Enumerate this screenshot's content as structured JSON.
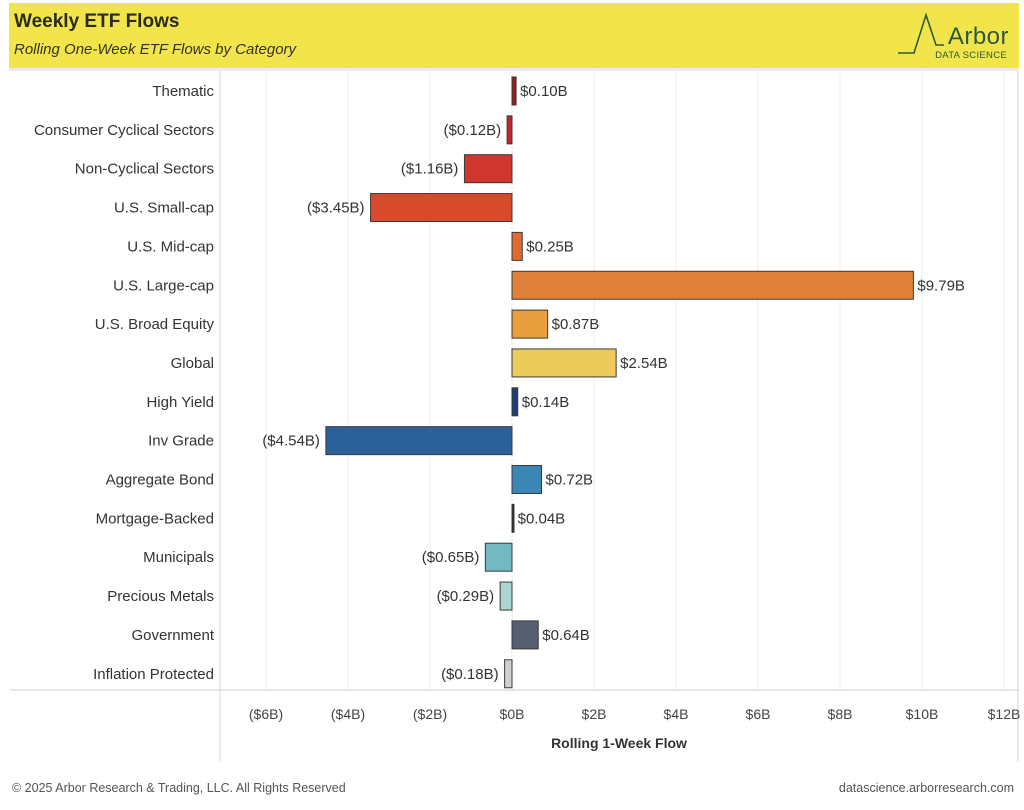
{
  "header": {
    "title": "Weekly ETF Flows",
    "subtitle": "Rolling One-Week ETF Flows by Category",
    "logo_word": "Arbor",
    "logo_sub": "DATA SCIENCE",
    "background_color": "#f2e54b"
  },
  "footer": {
    "copyright": "© 2025 Arbor Research & Trading, LLC. All Rights Reserved",
    "website": "datascience.arborresearch.com"
  },
  "chart_data": {
    "type": "bar",
    "orientation": "horizontal",
    "title": "Weekly ETF Flows",
    "subtitle": "Rolling One-Week ETF Flows by Category",
    "xlabel": "Rolling 1-Week Flow",
    "ylabel": "",
    "xlim": [
      -7,
      12.5
    ],
    "grid": true,
    "x_ticks": [
      -6,
      -4,
      -2,
      0,
      2,
      4,
      6,
      8,
      10,
      12
    ],
    "x_tick_labels": [
      "($6B)",
      "($4B)",
      "($2B)",
      "$0B",
      "$2B",
      "$4B",
      "$6B",
      "$8B",
      "$10B",
      "$12B"
    ],
    "categories": [
      "Thematic",
      "Consumer Cyclical Sectors",
      "Non-Cyclical Sectors",
      "U.S. Small-cap",
      "U.S. Mid-cap",
      "U.S. Large-cap",
      "U.S. Broad Equity",
      "Global",
      "High Yield",
      "Inv Grade",
      "Aggregate Bond",
      "Mortgage-Backed",
      "Municipals",
      "Precious Metals",
      "Government",
      "Inflation Protected"
    ],
    "values": [
      0.1,
      -0.12,
      -1.16,
      -3.45,
      0.25,
      9.79,
      0.87,
      2.54,
      0.14,
      -4.54,
      0.72,
      0.04,
      -0.65,
      -0.29,
      0.64,
      -0.18
    ],
    "data_labels": [
      "$0.10B",
      "($0.12B)",
      "($1.16B)",
      "($3.45B)",
      "$0.25B",
      "$9.79B",
      "$0.87B",
      "$2.54B",
      "$0.14B",
      "($4.54B)",
      "$0.72B",
      "$0.04B",
      "($0.65B)",
      "($0.29B)",
      "$0.64B",
      "($0.18B)"
    ],
    "colors": [
      "#9e1a1f",
      "#c0262b",
      "#d0352e",
      "#d94a2c",
      "#e06a30",
      "#e07f37",
      "#e8a03f",
      "#eccb5c",
      "#1f3e75",
      "#2b6198",
      "#3a86b5",
      "#1e2a3a",
      "#72b9c2",
      "#a9d6d0",
      "#556070",
      "#cfcfcf"
    ],
    "unit": "USD billions"
  }
}
